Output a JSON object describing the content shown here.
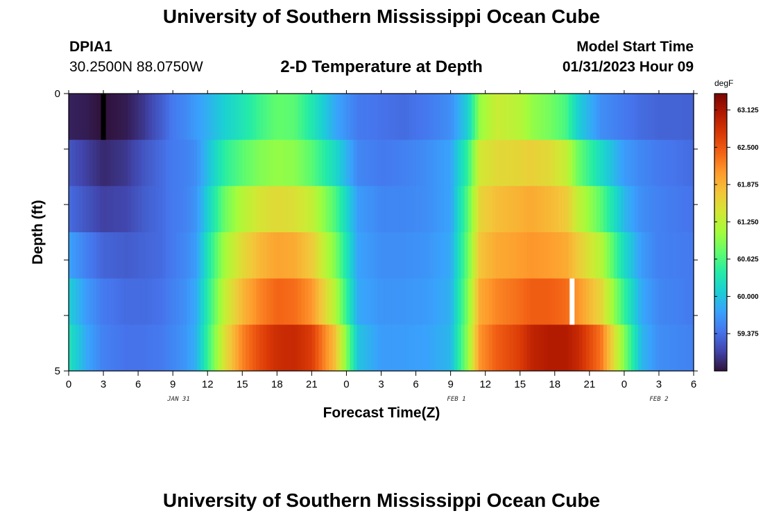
{
  "header": {
    "title": "University of Southern Mississippi Ocean Cube",
    "station_id": "DPIA1",
    "station_coords": "30.2500N  88.0750W",
    "subtitle": "2-D Temperature at Depth",
    "model_label": "Model Start Time",
    "model_time": "01/31/2023 Hour 09"
  },
  "footer": {
    "title": "University of Southern Mississippi Ocean Cube"
  },
  "chart_data": {
    "type": "heatmap",
    "title": "2-D Temperature at Depth",
    "xlabel": "Forecast Time(Z)",
    "ylabel": "Depth (ft)",
    "x_tick_labels": [
      "0",
      "3",
      "6",
      "9",
      "12",
      "15",
      "18",
      "21",
      "0",
      "3",
      "6",
      "9",
      "12",
      "15",
      "18",
      "21",
      "0",
      "3",
      "6"
    ],
    "x_range_hours": [
      0,
      54
    ],
    "y_tick_labels": [
      "0",
      "5"
    ],
    "y_range": [
      0,
      5
    ],
    "date_labels": [
      {
        "text": "JAN 31",
        "hour": 9.5
      },
      {
        "text": "FEB 1",
        "hour": 33.5
      },
      {
        "text": "FEB 2",
        "hour": 51.0
      }
    ],
    "depth_levels": [
      0,
      1,
      2,
      3,
      4,
      5
    ],
    "series": [
      {
        "depth": 0,
        "hours": [
          0,
          1.5,
          3,
          5,
          6.5,
          8,
          9,
          10,
          11,
          12,
          13.5,
          15,
          16.5,
          18,
          19.5,
          21,
          23,
          25,
          27,
          29,
          31,
          33,
          34.5,
          35.5,
          37,
          39,
          40,
          41.5,
          43,
          44,
          46,
          48,
          49.5,
          51,
          54
        ],
        "temps": [
          58.85,
          58.82,
          58.74,
          58.82,
          59.0,
          59.25,
          59.45,
          59.55,
          59.7,
          59.85,
          60.1,
          60.3,
          60.55,
          60.75,
          60.7,
          60.35,
          59.8,
          59.45,
          59.4,
          59.35,
          59.45,
          59.6,
          60.1,
          61.0,
          61.35,
          61.2,
          61.0,
          60.85,
          60.6,
          60.1,
          59.6,
          59.45,
          59.35,
          59.3,
          59.28
        ]
      },
      {
        "depth": 1,
        "hours": [
          0,
          1.5,
          3,
          5,
          6.5,
          8,
          9,
          10,
          11,
          12,
          13.5,
          15,
          16.5,
          18,
          19.5,
          21,
          23,
          25,
          27,
          29,
          31,
          33,
          34.5,
          35.5,
          37,
          39,
          40,
          41.5,
          43,
          44,
          46,
          48,
          49.5,
          51,
          54
        ],
        "temps": [
          59.2,
          59.05,
          58.9,
          59.0,
          59.2,
          59.35,
          59.45,
          59.5,
          59.6,
          59.95,
          60.45,
          60.7,
          60.9,
          61.0,
          60.95,
          60.7,
          60.2,
          59.55,
          59.45,
          59.5,
          59.6,
          59.75,
          60.5,
          61.4,
          61.55,
          61.6,
          61.65,
          61.55,
          61.3,
          60.8,
          60.2,
          59.7,
          59.55,
          59.45,
          59.35
        ]
      },
      {
        "depth": 2,
        "hours": [
          0,
          1.5,
          3,
          5,
          6.5,
          8,
          9,
          10,
          11,
          12,
          13.5,
          15,
          16.5,
          18,
          19.5,
          21,
          23,
          25,
          27,
          29,
          31,
          33,
          34.5,
          35.5,
          37,
          39,
          40,
          41.5,
          43,
          44,
          46,
          48,
          49.5,
          51,
          54
        ],
        "temps": [
          59.35,
          59.2,
          59.05,
          59.1,
          59.25,
          59.35,
          59.45,
          59.5,
          59.65,
          60.1,
          60.8,
          61.2,
          61.45,
          61.55,
          61.5,
          61.3,
          60.65,
          59.7,
          59.55,
          59.55,
          59.6,
          59.75,
          60.7,
          61.6,
          61.8,
          61.9,
          61.95,
          61.85,
          61.7,
          61.3,
          60.7,
          59.9,
          59.6,
          59.5,
          59.4
        ]
      },
      {
        "depth": 3,
        "hours": [
          0,
          1.5,
          3,
          5,
          6.5,
          8,
          9,
          10,
          11,
          12,
          13.5,
          15,
          16.5,
          18,
          19.5,
          21,
          23,
          25,
          27,
          29,
          31,
          33,
          34.5,
          35.5,
          37,
          39,
          40,
          41.5,
          43,
          44,
          46,
          48,
          49.5,
          51,
          54
        ],
        "temps": [
          59.75,
          59.5,
          59.3,
          59.25,
          59.3,
          59.35,
          59.45,
          59.55,
          59.7,
          60.3,
          61.1,
          61.55,
          61.85,
          62.0,
          61.95,
          61.7,
          60.9,
          59.75,
          59.6,
          59.6,
          59.65,
          59.8,
          60.8,
          61.75,
          61.95,
          62.05,
          62.1,
          62.05,
          61.95,
          61.7,
          61.2,
          60.2,
          59.7,
          59.5,
          59.45
        ]
      },
      {
        "depth": 4,
        "hours": [
          0,
          1.5,
          3,
          5,
          6.5,
          8,
          9,
          10,
          11,
          12,
          13.5,
          15,
          16.5,
          18,
          19.5,
          21,
          23,
          25,
          27,
          29,
          31,
          33,
          34.5,
          35.5,
          37,
          39,
          40,
          41.5,
          43,
          44,
          46,
          48,
          49.5,
          51,
          54
        ],
        "temps": [
          60.1,
          59.7,
          59.45,
          59.35,
          59.35,
          59.4,
          59.5,
          59.6,
          59.8,
          60.4,
          61.3,
          61.85,
          62.2,
          62.4,
          62.35,
          62.1,
          61.2,
          59.8,
          59.65,
          59.65,
          59.7,
          59.85,
          60.9,
          61.95,
          62.2,
          62.35,
          62.45,
          62.45,
          62.35,
          62.1,
          61.6,
          60.5,
          59.8,
          59.55,
          59.45
        ]
      },
      {
        "depth": 5,
        "hours": [
          0,
          1.5,
          3,
          5,
          6.5,
          8,
          9,
          10,
          11,
          12,
          13.5,
          15,
          16.5,
          18,
          19.5,
          21,
          23,
          25,
          27,
          29,
          31,
          33,
          34.5,
          35.5,
          37,
          39,
          40,
          41.5,
          43,
          44,
          46,
          48,
          49.5,
          51,
          54
        ],
        "temps": [
          60.3,
          59.8,
          59.5,
          59.4,
          59.4,
          59.45,
          59.55,
          59.65,
          59.85,
          60.5,
          61.5,
          62.2,
          62.6,
          62.85,
          62.9,
          62.7,
          61.8,
          60.0,
          59.7,
          59.7,
          59.75,
          59.9,
          61.0,
          62.1,
          62.45,
          62.7,
          62.95,
          63.05,
          63.05,
          62.9,
          62.3,
          60.9,
          59.9,
          59.6,
          59.5
        ]
      }
    ],
    "missing_data_markers": [
      {
        "hour": 3.0,
        "depth_from": 0,
        "depth_to": 1,
        "color": "#000000"
      },
      {
        "hour": 43.5,
        "depth_from": 4,
        "depth_to": 5,
        "color": "#ffffff"
      }
    ],
    "colorbar": {
      "unit": "degF",
      "min": 58.75,
      "max": 63.4,
      "tick_values": [
        63.125,
        62.5,
        61.875,
        61.25,
        60.625,
        60.0,
        59.375
      ],
      "tick_labels": [
        "63.125",
        "62.500",
        "61.875",
        "61.250",
        "60.625",
        "60.000",
        "59.375"
      ],
      "colors": [
        "#30123b",
        "#4145ab",
        "#4675ed",
        "#39a2fc",
        "#1bcfd4",
        "#24eca6",
        "#61fc6c",
        "#a4fc3b",
        "#d1e834",
        "#f3c63a",
        "#fe9b2d",
        "#f36315",
        "#d93806",
        "#b11901",
        "#7a0403"
      ]
    }
  }
}
